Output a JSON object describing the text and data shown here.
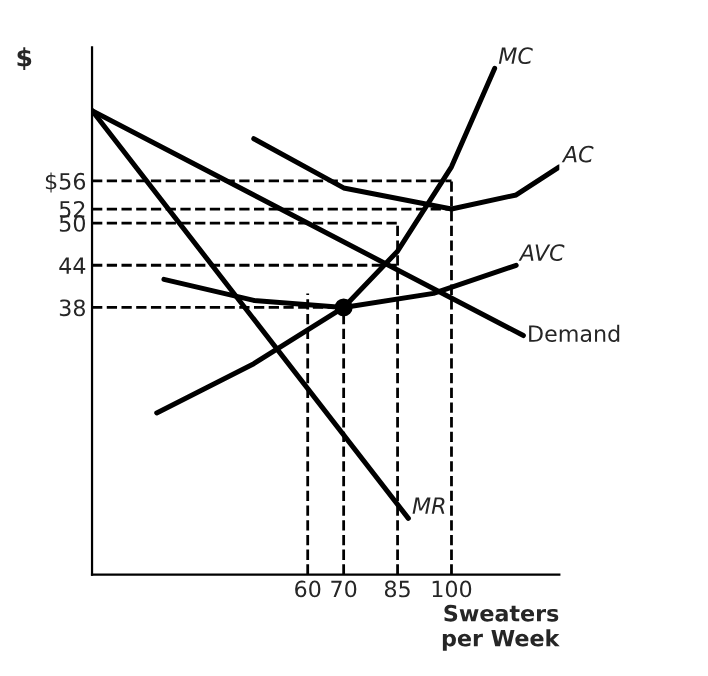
{
  "chart_data": {
    "type": "line",
    "xlabel": "Sweaters\nper Week",
    "ylabel": "$",
    "xlim": [
      0,
      130
    ],
    "ylim": [
      0,
      75
    ],
    "xticks": [
      60,
      70,
      85,
      100
    ],
    "yticks": [
      38,
      44,
      50,
      52,
      {
        "value": 56,
        "label": "$56"
      }
    ],
    "grid": false,
    "legend": false,
    "marker": "none",
    "series": [
      {
        "name": "MC",
        "color": "#000000",
        "x": [
          18,
          45,
          70,
          85,
          100,
          112
        ],
        "values": [
          23,
          30,
          38,
          46,
          58,
          72
        ]
      },
      {
        "name": "AC",
        "color": "#000000",
        "x": [
          45,
          70,
          100,
          118,
          130
        ],
        "values": [
          62,
          55,
          52,
          54,
          58
        ]
      },
      {
        "name": "AVC",
        "color": "#000000",
        "x": [
          20,
          45,
          70,
          95,
          118
        ],
        "values": [
          42,
          39,
          38,
          40,
          44
        ]
      },
      {
        "name": "Demand",
        "color": "#000000",
        "x": [
          0,
          120
        ],
        "values": [
          66,
          34
        ]
      },
      {
        "name": "MR",
        "color": "#000000",
        "x": [
          0,
          88
        ],
        "values": [
          66,
          8
        ]
      },
      {
        "type": "scatter",
        "color": "#000000",
        "marker": "circle",
        "x": [
          70
        ],
        "values": [
          38
        ]
      },
      {
        "color": "#000000",
        "line_style": "dashed",
        "x": [
          0,
          100
        ],
        "values": [
          56,
          56
        ]
      },
      {
        "color": "#000000",
        "line_style": "dashed",
        "x": [
          0,
          100
        ],
        "values": [
          52,
          52
        ]
      },
      {
        "color": "#000000",
        "line_style": "dashed",
        "x": [
          0,
          85
        ],
        "values": [
          50,
          50
        ]
      },
      {
        "color": "#000000",
        "line_style": "dashed",
        "x": [
          0,
          85
        ],
        "values": [
          44,
          44
        ]
      },
      {
        "color": "#000000",
        "line_style": "dashed",
        "x": [
          0,
          70
        ],
        "values": [
          38,
          38
        ]
      },
      {
        "color": "#000000",
        "line_style": "dashed",
        "x": [
          60,
          60
        ],
        "values": [
          0,
          40
        ]
      },
      {
        "color": "#000000",
        "line_style": "dashed",
        "x": [
          70,
          70
        ],
        "values": [
          0,
          38
        ]
      },
      {
        "color": "#000000",
        "line_style": "dashed",
        "x": [
          85,
          85
        ],
        "values": [
          0,
          50
        ]
      },
      {
        "color": "#000000",
        "line_style": "dashed",
        "x": [
          100,
          100
        ],
        "values": [
          0,
          56
        ]
      }
    ]
  }
}
